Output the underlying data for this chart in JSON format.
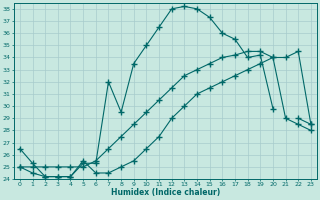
{
  "xlabel": "Humidex (Indice chaleur)",
  "bg_color": "#c8e8e0",
  "line_color": "#006868",
  "grid_color": "#a8cccc",
  "xlim": [
    -0.5,
    23.5
  ],
  "ylim": [
    24,
    38.5
  ],
  "xticks": [
    0,
    1,
    2,
    3,
    4,
    5,
    6,
    7,
    8,
    9,
    10,
    11,
    12,
    13,
    14,
    15,
    16,
    17,
    18,
    19,
    20,
    21,
    22,
    23
  ],
  "yticks": [
    24,
    25,
    26,
    27,
    28,
    29,
    30,
    31,
    32,
    33,
    34,
    35,
    36,
    37,
    38
  ],
  "series1_x": [
    0,
    1,
    2,
    3,
    4,
    5,
    6,
    7,
    8,
    9,
    10,
    11,
    12,
    13,
    14,
    15,
    16,
    17,
    18,
    19,
    20,
    21,
    22,
    23
  ],
  "series1_y": [
    26.5,
    25.3,
    24.2,
    24.2,
    24.2,
    25.3,
    25.3,
    32.0,
    29.5,
    33.5,
    35.0,
    36.5,
    38.0,
    38.2,
    38.0,
    37.3,
    36.0,
    35.5,
    34.0,
    34.2,
    29.8,
    null,
    29.0,
    28.5
  ],
  "series2_x": [
    0,
    1,
    2,
    3,
    4,
    5,
    6,
    7,
    8,
    9,
    10,
    11,
    12,
    13,
    14,
    15,
    16,
    17,
    18,
    19,
    20,
    21,
    22,
    23
  ],
  "series2_y": [
    25.0,
    25.0,
    25.0,
    25.0,
    25.0,
    25.0,
    25.5,
    26.5,
    27.5,
    28.5,
    29.5,
    30.5,
    31.5,
    32.5,
    33.0,
    33.5,
    34.0,
    34.2,
    34.5,
    34.5,
    34.0,
    29.0,
    28.5,
    28.0
  ],
  "series3_x": [
    0,
    1,
    2,
    3,
    4,
    5,
    6,
    7,
    8,
    9,
    10,
    11,
    12,
    13,
    14,
    15,
    16,
    17,
    18,
    19,
    20,
    21,
    22,
    23
  ],
  "series3_y": [
    25.0,
    24.5,
    24.2,
    24.2,
    24.2,
    25.5,
    24.5,
    24.5,
    25.0,
    25.5,
    26.5,
    27.5,
    29.0,
    30.0,
    31.0,
    31.5,
    32.0,
    32.5,
    33.0,
    33.5,
    34.0,
    34.0,
    34.5,
    28.5
  ]
}
